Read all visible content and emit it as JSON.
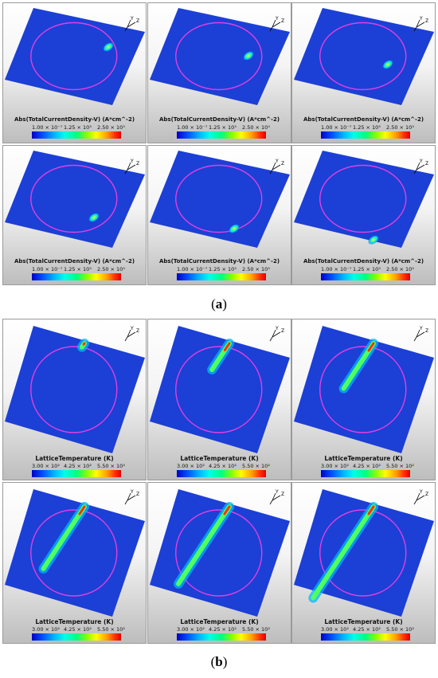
{
  "figure": {
    "caption_a": "a",
    "caption_b": "b",
    "group_a": {
      "legend_title": "Abs(TotalCurrentDensity-V) (A*cm^-2)",
      "ticks": [
        "1.00 × 10⁻⁷",
        "1.25 × 10⁵",
        "2.50 × 10⁵"
      ]
    },
    "group_b": {
      "legend_title": "LatticeTemperature (K)",
      "ticks": [
        "3.00 × 10²",
        "4.25 × 10²",
        "5.50 × 10²"
      ]
    },
    "axis_labels": {
      "y": "Y",
      "z": "Z"
    },
    "colors": {
      "background_plate": "#1c3fd6",
      "circle_outline": "#e040e0",
      "hotspot_low": "#00c8ff",
      "hotspot_high": "#ff2a00"
    }
  }
}
